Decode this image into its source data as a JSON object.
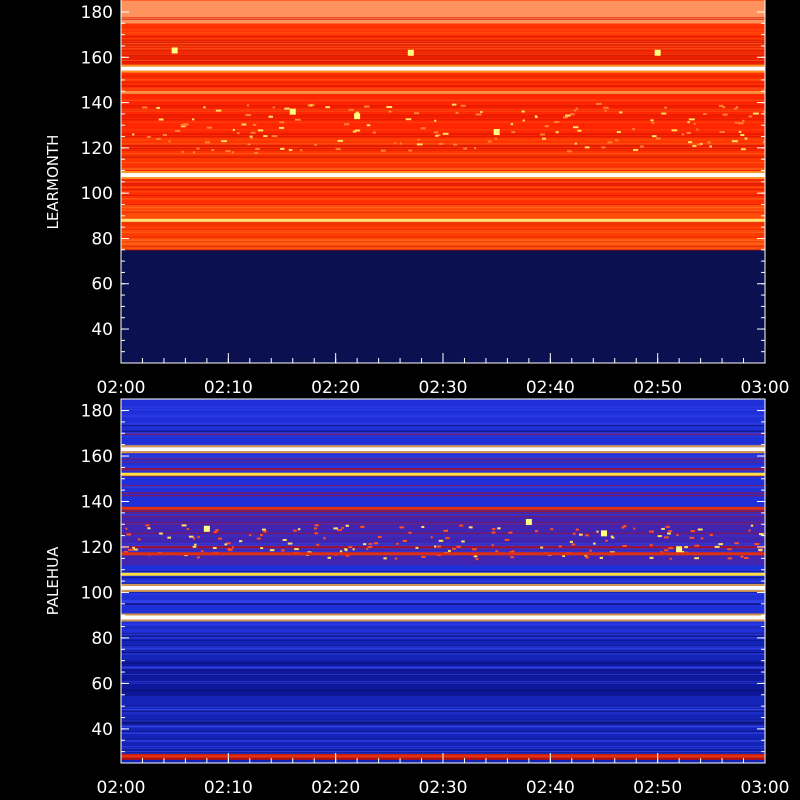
{
  "chart_data": [
    {
      "type": "heatmap",
      "title": "",
      "xlabel": "",
      "ylabel": "LEARMONTH",
      "x_ticks": [
        "02:00",
        "02:10",
        "02:20",
        "02:30",
        "02:40",
        "02:50",
        "03:00"
      ],
      "xlim": [
        "02:00",
        "03:00"
      ],
      "y_ticks": [
        40,
        60,
        80,
        100,
        120,
        140,
        160,
        180
      ],
      "ylim": [
        25,
        180
      ],
      "colormap": "blue-red-yellow-white",
      "colors": {
        "no_data": "#0b1050",
        "low": "#ff2a00",
        "mid": "#ff4a08",
        "high": "#ffee70",
        "saturated": "#ffffff"
      },
      "band_edges": [
        75,
        80,
        88,
        95,
        108,
        125,
        145,
        155,
        168,
        175
      ],
      "bright_lines": [
        {
          "y": 88,
          "level": "high"
        },
        {
          "y": 108,
          "level": "saturated"
        },
        {
          "y": 155,
          "level": "saturated"
        },
        {
          "y": 144.5,
          "level": "mid"
        }
      ],
      "bursts": [
        {
          "t": "02:16",
          "y": 136
        },
        {
          "t": "02:22",
          "y": 134
        },
        {
          "t": "02:35",
          "y": 127
        },
        {
          "t": "02:50",
          "y": 162
        },
        {
          "t": "02:27",
          "y": 162
        },
        {
          "t": "02:05",
          "y": 163
        }
      ]
    },
    {
      "type": "heatmap",
      "title": "",
      "xlabel": "",
      "ylabel": "PALEHUA",
      "x_ticks": [
        "02:00",
        "02:10",
        "02:20",
        "02:30",
        "02:40",
        "02:50",
        "03:00"
      ],
      "xlim": [
        "02:00",
        "03:00"
      ],
      "y_ticks": [
        40,
        60,
        80,
        100,
        120,
        140,
        160,
        180
      ],
      "ylim": [
        25,
        182
      ],
      "colormap": "blue-red-yellow-white",
      "colors": {
        "background": "#2030d8",
        "deep": "#0a1080",
        "red": "#c01000",
        "yellow": "#ffe040",
        "saturated": "#ffffff"
      },
      "bright_lines": [
        {
          "y": 163,
          "level": "saturated"
        },
        {
          "y": 152,
          "level": "high"
        },
        {
          "y": 108,
          "level": "high"
        },
        {
          "y": 102,
          "level": "saturated"
        },
        {
          "y": 89,
          "level": "saturated"
        },
        {
          "y": 137,
          "level": "mid"
        },
        {
          "y": 117,
          "level": "mid"
        },
        {
          "y": 28,
          "level": "mid"
        }
      ],
      "bursts": [
        {
          "t": "02:45",
          "y": 126
        },
        {
          "t": "02:52",
          "y": 119
        },
        {
          "t": "02:38",
          "y": 131
        },
        {
          "t": "02:08",
          "y": 128
        }
      ]
    }
  ]
}
